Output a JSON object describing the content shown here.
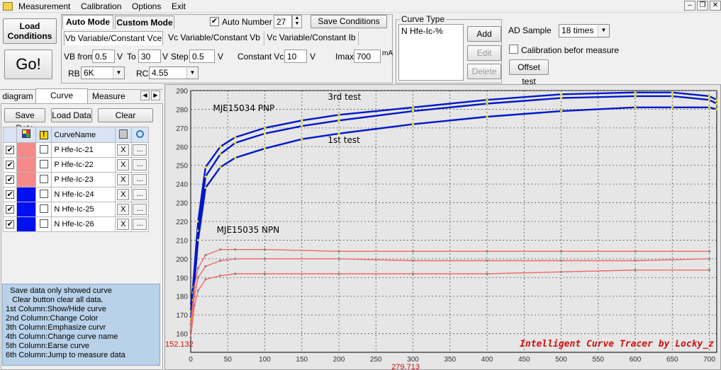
{
  "menu": {
    "items": [
      "Measurement",
      "Calibration",
      "Options",
      "Exit"
    ]
  },
  "toolbar": {
    "load_conditions": "Load Conditions",
    "go": "Go!",
    "save_conditions": "Save Conditions"
  },
  "mode_tabs": [
    "Auto Mode",
    "Custom Mode"
  ],
  "sub_tabs": [
    "Vb Variable/Constant Vce",
    "Vc Variable/Constant Vb",
    "Vc Variable/Constant Ib"
  ],
  "auto_number": {
    "label": "Auto Number",
    "checked": true,
    "value": "27"
  },
  "params": {
    "vb_from_label": "VB from",
    "vb_from": "0.5",
    "v1": "V",
    "to_label": "To",
    "to": "30",
    "v2": "V",
    "step_label": "Step",
    "step": "0.5",
    "v3": "V",
    "vce_label": "Constant Vce",
    "vce": "10",
    "v4": "V",
    "imax_label": "Imax",
    "imax": "700",
    "imax_unit": "mA",
    "rb_label": "RB",
    "rb": "6K",
    "rc_label": "RC",
    "rc": "4.55"
  },
  "curve_type": {
    "title": "Curve Type",
    "item": "N Hfe-Ic-%",
    "add": "Add",
    "edit": "Edit",
    "delete": "Delete"
  },
  "ad": {
    "label": "AD Sample",
    "value": "18 times",
    "calibration": "Calibration befor measure",
    "offset": "Offset test"
  },
  "left_tabs": [
    "diagram",
    "Curve Control",
    "Measure Data"
  ],
  "curve_panel": {
    "save": "Save Data",
    "load": "Load Data",
    "clear": "Clear",
    "col_name": "CurveName",
    "rows": [
      {
        "name": "P Hfe-Ic-21",
        "color": "#f48a8a",
        "checked": true
      },
      {
        "name": "P Hfe-Ic-22",
        "color": "#f48a8a",
        "checked": true
      },
      {
        "name": "P Hfe-Ic-23",
        "color": "#f48a8a",
        "checked": true
      },
      {
        "name": "N Hfe-Ic-24",
        "color": "#0010f0",
        "checked": true
      },
      {
        "name": "N Hfe-Ic-25",
        "color": "#0010f0",
        "checked": true
      },
      {
        "name": "N Hfe-Ic-26",
        "color": "#0010f0",
        "checked": true
      }
    ],
    "x_label": "X",
    "dots_label": "..."
  },
  "help_lines": [
    "  Save data only showed curve",
    "   Clear button clear all data.",
    "1st Column:Show/Hide curve",
    "2nd Column:Change Color",
    "3th Column:Emphasize curvr",
    "4th Column:Change curve name",
    "5th Column:Earse curve",
    "6th Column:Jump to measure data"
  ],
  "chart_data": {
    "type": "line",
    "xlim": [
      0,
      710
    ],
    "ylim": [
      150,
      290
    ],
    "x_ticks": [
      0,
      50,
      100,
      150,
      200,
      250,
      300,
      350,
      400,
      450,
      500,
      550,
      600,
      650,
      700
    ],
    "y_ticks": [
      160,
      170,
      180,
      190,
      200,
      210,
      220,
      230,
      240,
      250,
      260,
      270,
      280,
      290
    ],
    "grid": true,
    "annotations": [
      {
        "text": "3rd test",
        "x": 185,
        "y": 285
      },
      {
        "text": "MJE15034 PNP",
        "x": 30,
        "y": 279
      },
      {
        "text": "1st test",
        "x": 185,
        "y": 262
      },
      {
        "text": "MJE15035 NPN",
        "x": 35,
        "y": 214
      }
    ],
    "readout_y": "152.132",
    "readout_x": "279.713",
    "watermark": "Intelligent Curve Tracer by Locky_z",
    "series": [
      {
        "color": "#0018c8",
        "x": [
          0,
          3,
          10,
          20,
          40,
          60,
          100,
          150,
          200,
          300,
          400,
          500,
          600,
          650,
          700,
          710
        ],
        "y": [
          175,
          185,
          220,
          249,
          260,
          265,
          270,
          274,
          277,
          281,
          285,
          288,
          289,
          289,
          287,
          285
        ]
      },
      {
        "color": "#0018c8",
        "x": [
          0,
          3,
          10,
          20,
          40,
          60,
          100,
          150,
          200,
          300,
          400,
          500,
          600,
          650,
          700,
          710
        ],
        "y": [
          172,
          182,
          215,
          244,
          256,
          262,
          267,
          271,
          274,
          279,
          283,
          286,
          287,
          287,
          285,
          283
        ]
      },
      {
        "color": "#0018c8",
        "x": [
          0,
          3,
          10,
          20,
          40,
          60,
          100,
          150,
          200,
          300,
          400,
          500,
          600,
          650,
          700,
          710
        ],
        "y": [
          168,
          178,
          210,
          238,
          249,
          254,
          259,
          264,
          267,
          272,
          276,
          279,
          281,
          281,
          281,
          280
        ]
      },
      {
        "color": "#f06868",
        "x": [
          0,
          5,
          10,
          20,
          40,
          60,
          100,
          200,
          300,
          400,
          500,
          600,
          700
        ],
        "y": [
          165,
          185,
          195,
          202,
          205,
          205,
          205,
          204,
          204,
          204,
          204,
          204,
          204
        ]
      },
      {
        "color": "#f06868",
        "x": [
          0,
          5,
          10,
          20,
          40,
          60,
          100,
          200,
          300,
          400,
          500,
          600,
          700
        ],
        "y": [
          162,
          180,
          190,
          196,
          199,
          200,
          200,
          200,
          199,
          199,
          199,
          199,
          200
        ]
      },
      {
        "color": "#f06868",
        "x": [
          0,
          5,
          10,
          20,
          40,
          60,
          100,
          200,
          300,
          400,
          500,
          600,
          700
        ],
        "y": [
          158,
          175,
          183,
          189,
          191,
          192,
          192,
          192,
          192,
          192,
          193,
          194,
          194
        ]
      }
    ]
  }
}
